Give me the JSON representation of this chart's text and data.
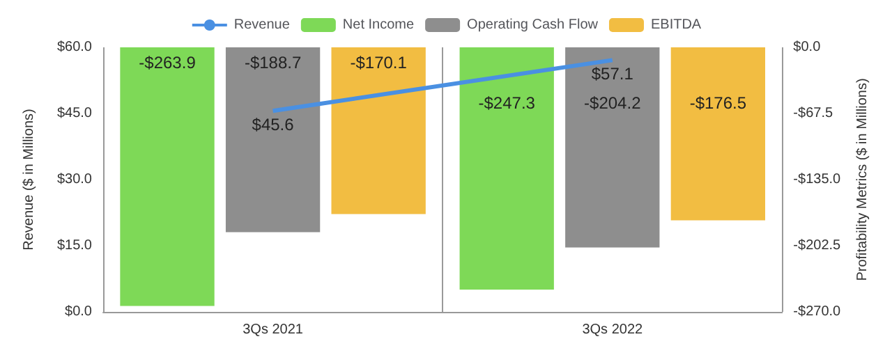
{
  "chart_data": {
    "type": "bar",
    "categories": [
      "3Qs 2021",
      "3Qs 2022"
    ],
    "ylabel": "Revenue ($ in Millions)",
    "y2label": "Profitability Metrics ($ in Millions)",
    "ylim": [
      0,
      60
    ],
    "yticks": [
      {
        "value": 0,
        "label": "$0.0"
      },
      {
        "value": 15,
        "label": "$15.0"
      },
      {
        "value": 30,
        "label": "$30.0"
      },
      {
        "value": 45,
        "label": "$45.0"
      },
      {
        "value": 60,
        "label": "$60.0"
      }
    ],
    "y2lim": [
      -270,
      0
    ],
    "y2ticks": [
      {
        "value": -270,
        "label": "-$270.0"
      },
      {
        "value": -202.5,
        "label": "-$202.5"
      },
      {
        "value": -135,
        "label": "-$135.0"
      },
      {
        "value": -67.5,
        "label": "-$67.5"
      },
      {
        "value": 0,
        "label": "$0.0"
      }
    ],
    "series": [
      {
        "name": "Revenue",
        "type": "line",
        "color": "#4a90e2",
        "values": [
          45.6,
          57.1
        ],
        "value_labels": [
          "$45.6",
          "$57.1"
        ]
      },
      {
        "name": "Net Income",
        "color": "#7ed957",
        "axis": "y2",
        "values": [
          -263.9,
          -247.3
        ],
        "value_labels": [
          "-$263.9",
          "-$247.3"
        ]
      },
      {
        "name": "Operating Cash Flow",
        "color": "#8e8e8e",
        "axis": "y2",
        "values": [
          -188.7,
          -204.2
        ],
        "value_labels": [
          "-$188.7",
          "-$204.2"
        ]
      },
      {
        "name": "EBITDA",
        "color": "#f2bd42",
        "axis": "y2",
        "values": [
          -170.1,
          -176.5
        ],
        "value_labels": [
          "-$170.1",
          "-$176.5"
        ]
      }
    ],
    "grid": "x",
    "legend": "top",
    "marker": "none"
  }
}
